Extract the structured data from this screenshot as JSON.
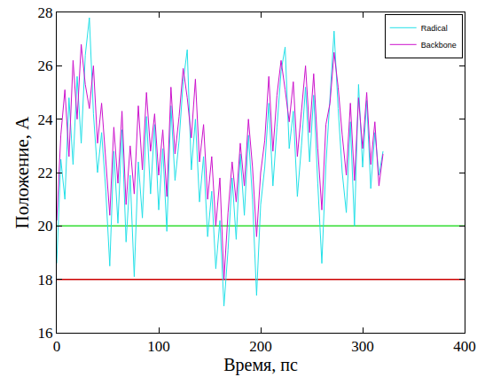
{
  "chart_data": {
    "type": "line",
    "x_label": "Время, пс",
    "y_label": "Положение, A",
    "x": [
      0,
      4,
      8,
      12,
      16,
      20,
      24,
      28,
      32,
      36,
      40,
      44,
      48,
      52,
      56,
      60,
      64,
      68,
      72,
      76,
      80,
      84,
      88,
      92,
      96,
      100,
      104,
      108,
      112,
      116,
      120,
      124,
      128,
      132,
      136,
      140,
      144,
      148,
      152,
      156,
      160,
      164,
      168,
      172,
      176,
      180,
      184,
      188,
      192,
      196,
      200,
      204,
      208,
      212,
      216,
      220,
      224,
      228,
      232,
      236,
      240,
      244,
      248,
      252,
      256,
      260,
      264,
      268,
      272,
      276,
      280,
      284,
      288,
      292,
      296,
      300,
      304,
      308,
      312,
      316,
      320
    ],
    "series": [
      {
        "name": "Radical",
        "color": "#22e0e8",
        "values": [
          18.6,
          22.5,
          21.0,
          24.8,
          22.3,
          25.6,
          23.1,
          26.4,
          27.8,
          24.2,
          22.0,
          23.5,
          21.4,
          18.5,
          22.8,
          20.1,
          23.6,
          19.4,
          21.9,
          18.1,
          22.4,
          20.3,
          24.1,
          21.2,
          23.8,
          20.6,
          22.9,
          19.8,
          24.5,
          21.7,
          23.2,
          25.4,
          26.6,
          22.1,
          24.0,
          20.9,
          22.6,
          19.6,
          21.3,
          18.4,
          20.2,
          17.0,
          19.1,
          21.8,
          19.5,
          22.7,
          20.4,
          23.4,
          21.0,
          17.4,
          20.8,
          22.2,
          24.6,
          21.5,
          23.7,
          25.8,
          26.7,
          22.9,
          24.3,
          21.1,
          23.0,
          25.2,
          22.4,
          24.9,
          21.6,
          18.6,
          22.3,
          25.0,
          27.3,
          24.4,
          22.0,
          20.5,
          23.9,
          20.0,
          25.3,
          22.2,
          24.7,
          21.4,
          23.5,
          21.9,
          22.8
        ]
      },
      {
        "name": "Backbone",
        "color": "#cc11cc",
        "values": [
          20.2,
          23.4,
          25.1,
          22.6,
          26.2,
          24.0,
          26.8,
          25.3,
          24.4,
          26.0,
          23.1,
          24.6,
          22.5,
          20.4,
          23.7,
          21.6,
          24.3,
          20.8,
          23.0,
          21.2,
          24.5,
          22.1,
          25.0,
          22.8,
          24.2,
          21.9,
          23.6,
          21.1,
          25.2,
          22.7,
          24.1,
          25.9,
          24.8,
          23.3,
          25.5,
          22.4,
          23.8,
          21.0,
          22.6,
          20.0,
          21.8,
          18.0,
          20.5,
          22.4,
          20.9,
          23.1,
          21.5,
          24.0,
          22.2,
          19.6,
          22.0,
          23.2,
          25.6,
          22.8,
          24.9,
          26.2,
          25.1,
          23.9,
          25.4,
          22.6,
          24.3,
          26.0,
          23.5,
          25.7,
          22.9,
          20.6,
          23.8,
          24.6,
          26.5,
          25.2,
          23.4,
          21.9,
          24.6,
          21.7,
          24.8,
          22.9,
          25.0,
          22.3,
          23.9,
          21.5,
          22.7
        ]
      }
    ],
    "reference_lines": [
      {
        "y": 20,
        "color": "#33dd33"
      },
      {
        "y": 18,
        "color": "#cc0000"
      }
    ],
    "xlim": [
      0,
      400
    ],
    "xticks": [
      0,
      100,
      200,
      300,
      400
    ],
    "ylim": [
      16,
      28
    ],
    "yticks": [
      16,
      18,
      20,
      22,
      24,
      26,
      28
    ],
    "grid": false,
    "legend": "top right"
  }
}
